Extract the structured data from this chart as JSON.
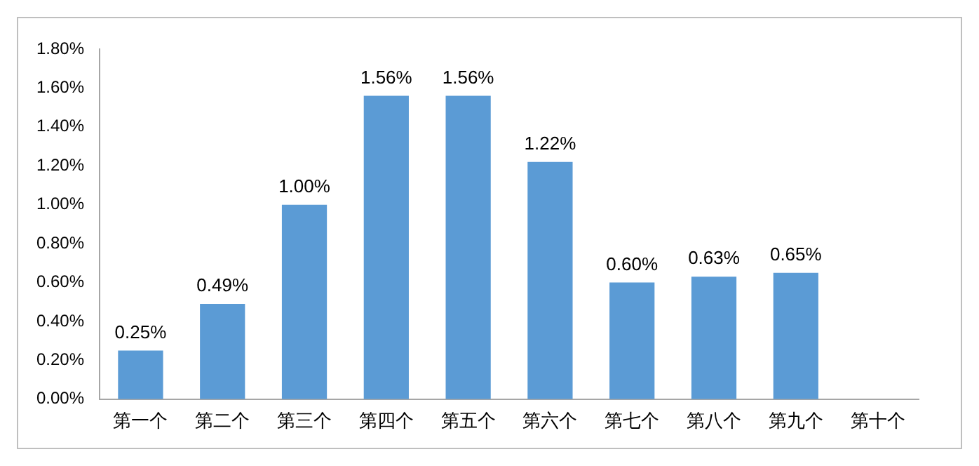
{
  "chart_data": {
    "type": "bar",
    "categories": [
      "第一个",
      "第二个",
      "第三个",
      "第四个",
      "第五个",
      "第六个",
      "第七个",
      "第八个",
      "第九个",
      "第十个"
    ],
    "values": [
      0.25,
      0.49,
      1.0,
      1.56,
      1.56,
      1.22,
      0.6,
      0.63,
      0.65,
      null
    ],
    "value_labels": [
      "0.25%",
      "0.49%",
      "1.00%",
      "1.56%",
      "1.56%",
      "1.22%",
      "0.60%",
      "0.63%",
      "0.65%",
      null
    ],
    "color": "#5b9bd5",
    "ylim": [
      0,
      1.8
    ],
    "yticks": [
      {
        "value": 0,
        "label": "0.00%"
      },
      {
        "value": 0.2,
        "label": "0.20%"
      },
      {
        "value": 0.4,
        "label": "0.40%"
      },
      {
        "value": 0.6,
        "label": "0.60%"
      },
      {
        "value": 0.8,
        "label": "0.80%"
      },
      {
        "value": 1.0,
        "label": "1.00%"
      },
      {
        "value": 1.2,
        "label": "1.20%"
      },
      {
        "value": 1.4,
        "label": "1.40%"
      },
      {
        "value": 1.6,
        "label": "1.60%"
      },
      {
        "value": 1.8,
        "label": "1.80%"
      }
    ],
    "grid": false,
    "legend": false
  }
}
